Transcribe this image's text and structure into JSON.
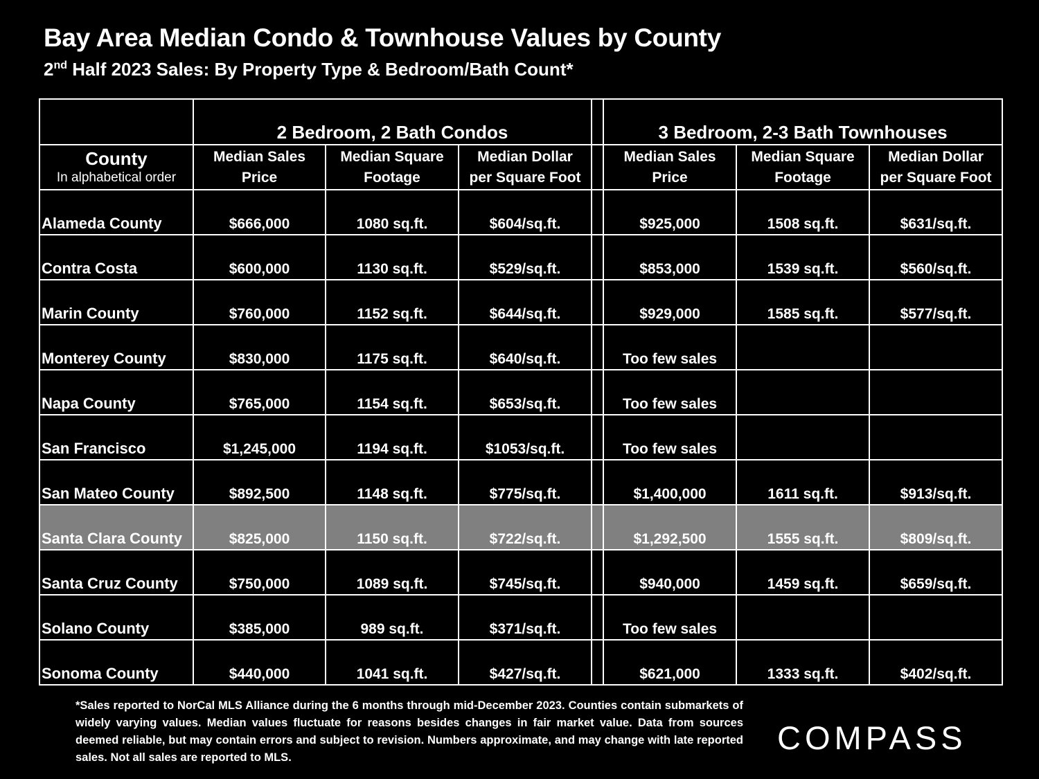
{
  "title": "Bay Area Median Condo & Townhouse Values by County",
  "subtitle": {
    "ordinal_number": "2",
    "ordinal_suffix": "nd",
    "rest": " Half 2023 Sales:  By Property Type & Bedroom/Bath Count*"
  },
  "chart_data": {
    "type": "table",
    "title": "Bay Area Median Condo & Townhouse Values by County",
    "groups": [
      "2 Bedroom, 2 Bath Condos",
      "3 Bedroom, 2-3 Bath Townhouses"
    ],
    "county_header": {
      "main": "County",
      "sub": "In alphabetical order"
    },
    "metric_headers": [
      [
        "Median Sales",
        "Price"
      ],
      [
        "Median Square",
        "Footage"
      ],
      [
        "Median Dollar",
        "per Square Foot"
      ],
      [
        "Median Sales",
        "Price"
      ],
      [
        "Median Square",
        "Footage"
      ],
      [
        "Median Dollar",
        "per Square Foot"
      ]
    ],
    "rows": [
      {
        "county": "Alameda County",
        "highlight": false,
        "values": [
          "$666,000",
          "1080 sq.ft.",
          "$604/sq.ft.",
          "$925,000",
          "1508 sq.ft.",
          "$631/sq.ft."
        ]
      },
      {
        "county": "Contra Costa",
        "highlight": false,
        "values": [
          "$600,000",
          "1130 sq.ft.",
          "$529/sq.ft.",
          "$853,000",
          "1539 sq.ft.",
          "$560/sq.ft."
        ]
      },
      {
        "county": "Marin County",
        "highlight": false,
        "values": [
          "$760,000",
          "1152 sq.ft.",
          "$644/sq.ft.",
          "$929,000",
          "1585 sq.ft.",
          "$577/sq.ft."
        ]
      },
      {
        "county": "Monterey County",
        "highlight": false,
        "values": [
          "$830,000",
          "1175 sq.ft.",
          "$640/sq.ft.",
          "Too few sales",
          "",
          ""
        ]
      },
      {
        "county": "Napa County",
        "highlight": false,
        "values": [
          "$765,000",
          "1154 sq.ft.",
          "$653/sq.ft.",
          "Too few sales",
          "",
          ""
        ]
      },
      {
        "county": "San Francisco",
        "highlight": false,
        "values": [
          "$1,245,000",
          "1194 sq.ft.",
          "$1053/sq.ft.",
          "Too few sales",
          "",
          ""
        ]
      },
      {
        "county": "San Mateo County",
        "highlight": false,
        "values": [
          "$892,500",
          "1148 sq.ft.",
          "$775/sq.ft.",
          "$1,400,000",
          "1611 sq.ft.",
          "$913/sq.ft."
        ]
      },
      {
        "county": "Santa Clara County",
        "highlight": true,
        "values": [
          "$825,000",
          "1150 sq.ft.",
          "$722/sq.ft.",
          "$1,292,500",
          "1555 sq.ft.",
          "$809/sq.ft."
        ]
      },
      {
        "county": "Santa Cruz County",
        "highlight": false,
        "values": [
          "$750,000",
          "1089 sq.ft.",
          "$745/sq.ft.",
          "$940,000",
          "1459 sq.ft.",
          "$659/sq.ft."
        ]
      },
      {
        "county": "Solano County",
        "highlight": false,
        "values": [
          "$385,000",
          "989 sq.ft.",
          "$371/sq.ft.",
          "Too few sales",
          "",
          ""
        ]
      },
      {
        "county": "Sonoma County",
        "highlight": false,
        "values": [
          "$440,000",
          "1041 sq.ft.",
          "$427/sq.ft.",
          "$621,000",
          "1333 sq.ft.",
          "$402/sq.ft."
        ]
      }
    ]
  },
  "footnote": "*Sales reported to NorCal MLS Alliance during the 6 months through mid-December 2023. Counties contain submarkets of widely varying values. Median values fluctuate for reasons besides changes in fair market value. Data from sources deemed reliable, but may contain errors and subject to revision.  Numbers approximate, and may change with late reported sales. Not all sales are reported to MLS.",
  "logo": {
    "name": "COMPASS",
    "icon": "compass-logo"
  },
  "colors": {
    "background": "#000000",
    "text": "#ffffff",
    "highlight_row": "#808080",
    "grid": "#ffffff"
  }
}
